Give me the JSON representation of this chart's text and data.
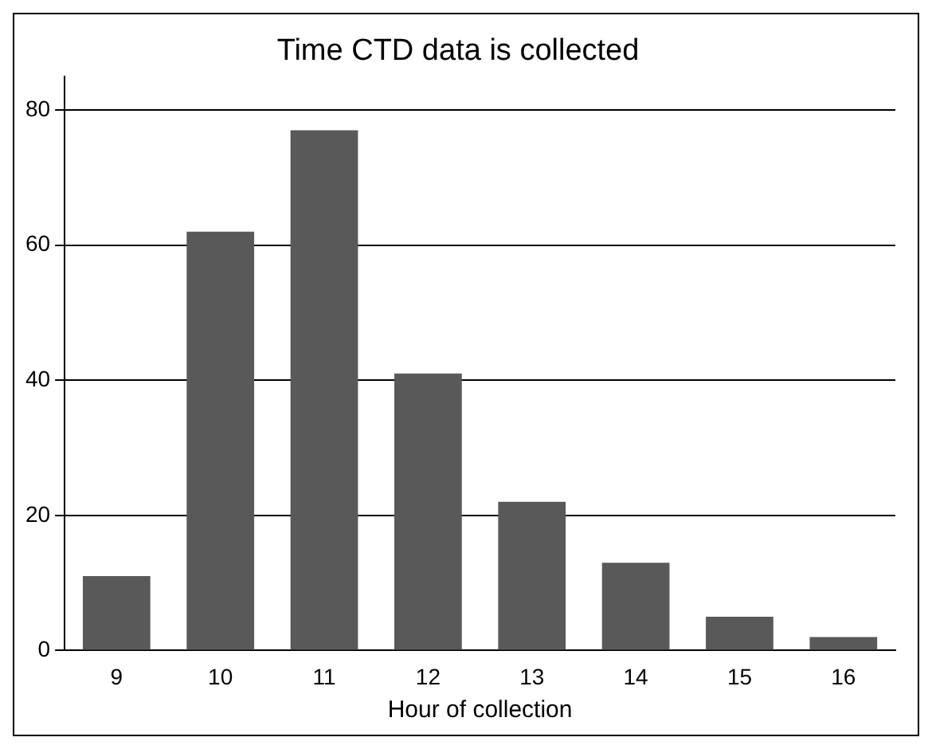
{
  "chart_data": {
    "type": "bar",
    "title": "Time CTD data is collected",
    "xlabel": "Hour of collection",
    "categories": [
      "9",
      "10",
      "11",
      "12",
      "13",
      "14",
      "15",
      "16"
    ],
    "values": [
      11,
      62,
      77,
      41,
      22,
      13,
      5,
      2
    ],
    "color": "#595959",
    "ylim": [
      0,
      85
    ],
    "yticks": [
      0,
      20,
      40,
      60,
      80
    ],
    "grid": "y",
    "legend": false
  }
}
